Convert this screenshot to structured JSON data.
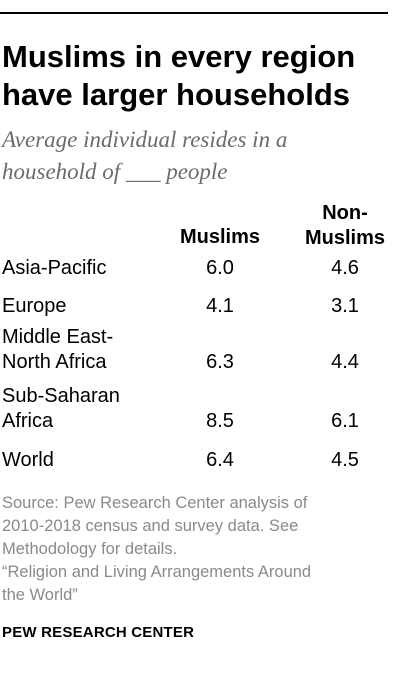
{
  "chart_data": {
    "type": "table",
    "title": "Muslims in every region have larger households",
    "subtitle": "Average individual resides in a household of ___ people",
    "columns": [
      "Muslims",
      "Non-Muslims"
    ],
    "rows": [
      {
        "label": "Asia-Pacific",
        "muslims": "6.0",
        "non_muslims": "4.6"
      },
      {
        "label": "Europe",
        "muslims": "4.1",
        "non_muslims": "3.1"
      },
      {
        "label": "Middle East-North Africa",
        "muslims": "6.3",
        "non_muslims": "4.4"
      },
      {
        "label": "Sub-Saharan Africa",
        "muslims": "8.5",
        "non_muslims": "6.1"
      },
      {
        "label": "World",
        "muslims": "6.4",
        "non_muslims": "4.5"
      }
    ]
  },
  "header": {
    "col_muslims": "Muslims",
    "col_non_muslims_line1": "Non-",
    "col_non_muslims_line2": "Muslims"
  },
  "row_labels": {
    "asia_pacific": "Asia-Pacific",
    "europe": "Europe",
    "mena_line1": "Middle East-",
    "mena_line2": "North Africa",
    "ssa_line1": "Sub-Saharan",
    "ssa_line2": "Africa",
    "world": "World"
  },
  "footer": {
    "source_line1": "Source: Pew Research Center analysis of",
    "source_line2": "2010-2018 census and survey data. See",
    "source_line3": "Methodology for details.",
    "report_line1": "“Religion and Living Arrangements Around",
    "report_line2": "the World”",
    "brand": "PEW RESEARCH CENTER"
  }
}
